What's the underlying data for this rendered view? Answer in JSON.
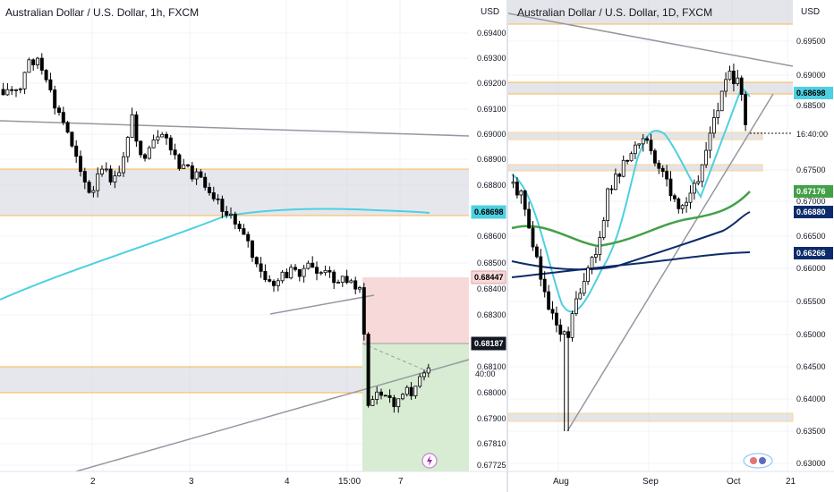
{
  "colors": {
    "up": "#ffffff",
    "down": "#000000",
    "grid": "#f0f3fa",
    "band": "#d1d4dc",
    "band_edge": "#ffb74d",
    "trend": "#9598a1",
    "ma_cyan": "#4dd0e1",
    "ma_green": "#43a047",
    "ma_navy": "#0d2b6b",
    "stop_zone": "#f8d9d9",
    "target_zone": "#d7ecd2",
    "price_badge": "#ffffff"
  },
  "left": {
    "title": "Australian Dollar / U.S. Dollar, 1h, FXCM",
    "currency": "USD",
    "y_ticks": [
      "0.69400",
      "0.69300",
      "0.69200",
      "0.69100",
      "0.69000",
      "0.68900",
      "0.68800",
      "0.68600",
      "0.68500",
      "0.68400",
      "0.68300",
      "0.68100",
      "0.68000",
      "0.67900",
      "0.67810",
      "0.67725"
    ],
    "x_ticks": [
      "2",
      "3",
      "4",
      "15:00",
      "7"
    ],
    "badges": {
      "ma": "0.68698",
      "stop": "0.68447",
      "entry": "0.68187",
      "countdown": "40:00"
    },
    "bolt_icon": "lightning-icon"
  },
  "right": {
    "title": "Australian Dollar / U.S. Dollar, 1D, FXCM",
    "currency": "USD",
    "y_ticks": [
      "0.69500",
      "0.69000",
      "0.68500",
      "0.67500",
      "0.67000",
      "0.66500",
      "0.66000",
      "0.65500",
      "0.65000",
      "0.64500",
      "0.64000",
      "0.63500",
      "0.63000"
    ],
    "x_ticks": [
      "Aug",
      "Sep",
      "Oct",
      "21"
    ],
    "badges": {
      "ma_cyan": "0.68698",
      "countdown": "16:40:00",
      "ma_green": "0.67176",
      "ma_navy1": "0.66880",
      "ma_navy2": "0.66266"
    },
    "logo": "tradingview-watermark-icon"
  }
}
